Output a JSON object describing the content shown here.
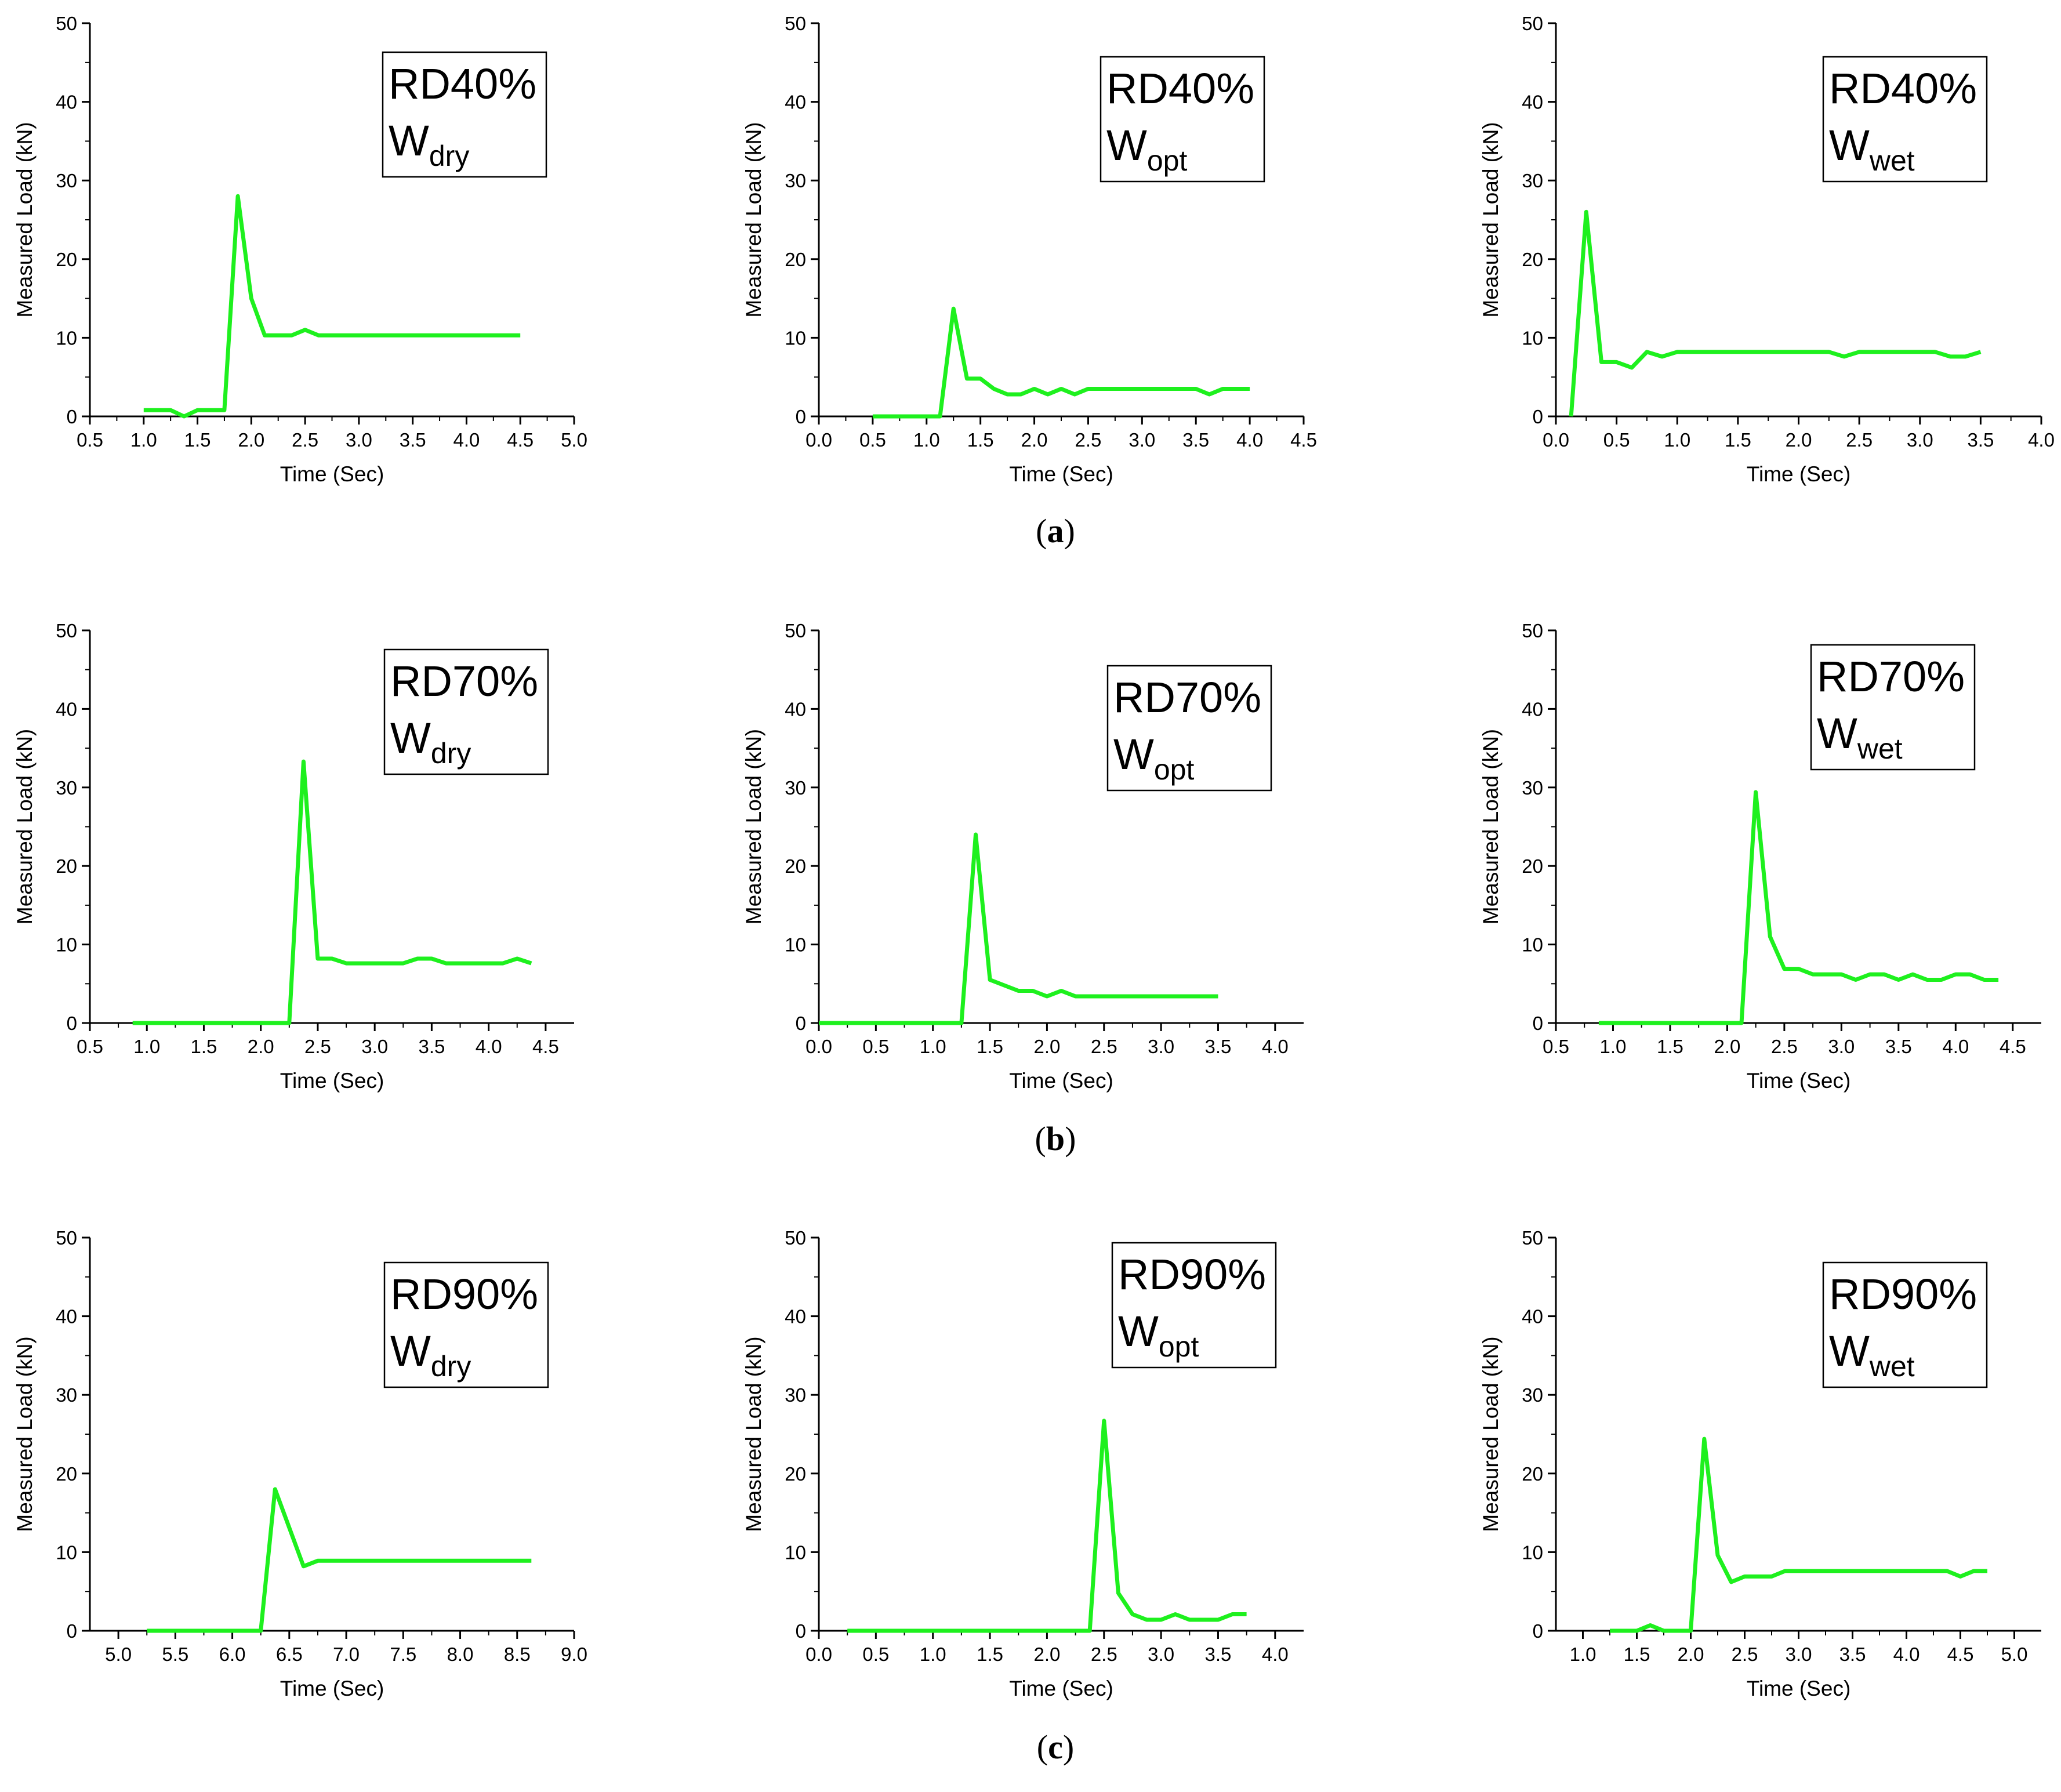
{
  "figure": {
    "line_color": "#1ef01e",
    "axis_color": "#000000",
    "row_labels": [
      "a",
      "b",
      "c"
    ]
  },
  "chart_data": [
    {
      "type": "line",
      "row": "a",
      "title": "RD40%",
      "subscript": "dry",
      "xlabel": "Time (Sec)",
      "ylabel": "Measured Load (kN)",
      "xlim": [
        0.5,
        5.0
      ],
      "xticks": [
        "0.5",
        "1.0",
        "1.5",
        "2.0",
        "2.5",
        "3.0",
        "3.5",
        "4.0",
        "4.5",
        "5.0"
      ],
      "ylim": [
        0,
        50
      ],
      "yticks": [
        "0",
        "10",
        "20",
        "30",
        "40",
        "50"
      ],
      "x": [
        1.0,
        1.25,
        1.375,
        1.5,
        1.75,
        1.875,
        2.0,
        2.125,
        2.375,
        2.5,
        2.625,
        4.5
      ],
      "y": [
        0.8,
        0.8,
        0.0,
        0.8,
        0.8,
        28.0,
        15.0,
        10.3,
        10.3,
        11.0,
        10.3,
        10.3
      ]
    },
    {
      "type": "line",
      "row": "a",
      "title": "RD40%",
      "subscript": "opt",
      "xlabel": "Time (Sec)",
      "ylabel": "Measured Load (kN)",
      "xlim": [
        0.0,
        4.5
      ],
      "xticks": [
        "0.0",
        "0.5",
        "1.0",
        "1.5",
        "2.0",
        "2.5",
        "3.0",
        "3.5",
        "4.0",
        "4.5"
      ],
      "ylim": [
        0,
        50
      ],
      "yticks": [
        "0",
        "10",
        "20",
        "30",
        "40",
        "50"
      ],
      "x": [
        0.5,
        1.125,
        1.25,
        1.375,
        1.5,
        1.625,
        1.75,
        1.875,
        2.0,
        2.125,
        2.25,
        2.375,
        2.5,
        3.5,
        3.625,
        3.75,
        4.0
      ],
      "y": [
        0.0,
        0.0,
        13.7,
        4.8,
        4.8,
        3.5,
        2.8,
        2.8,
        3.5,
        2.8,
        3.5,
        2.8,
        3.5,
        3.5,
        2.8,
        3.5,
        3.5
      ]
    },
    {
      "type": "line",
      "row": "a",
      "title": "RD40%",
      "subscript": "wet",
      "xlabel": "Time (Sec)",
      "ylabel": "Measured Load (kN)",
      "xlim": [
        0.0,
        4.0
      ],
      "xticks": [
        "0.0",
        "0.5",
        "1.0",
        "1.5",
        "2.0",
        "2.5",
        "3.0",
        "3.5",
        "4.0"
      ],
      "ylim": [
        0,
        50
      ],
      "yticks": [
        "0",
        "10",
        "20",
        "30",
        "40",
        "50"
      ],
      "x": [
        0.125,
        0.25,
        0.375,
        0.5,
        0.625,
        0.75,
        0.875,
        1.0,
        2.25,
        2.375,
        2.5,
        3.125,
        3.25,
        3.375,
        3.5
      ],
      "y": [
        0.0,
        26.0,
        6.9,
        6.9,
        6.2,
        8.2,
        7.6,
        8.2,
        8.2,
        7.6,
        8.2,
        8.2,
        7.6,
        7.6,
        8.2
      ]
    },
    {
      "type": "line",
      "row": "b",
      "title": "RD70%",
      "subscript": "dry",
      "xlabel": "Time (Sec)",
      "ylabel": "Measured Load (kN)",
      "xlim": [
        0.5,
        4.75
      ],
      "xticks": [
        "0.5",
        "1.0",
        "1.5",
        "2.0",
        "2.5",
        "3.0",
        "3.5",
        "4.0",
        "4.5"
      ],
      "ylim": [
        0,
        50
      ],
      "yticks": [
        "0",
        "10",
        "20",
        "30",
        "40",
        "50"
      ],
      "x": [
        0.875,
        2.25,
        2.375,
        2.5,
        2.625,
        2.75,
        3.25,
        3.375,
        3.5,
        3.625,
        4.125,
        4.25,
        4.375
      ],
      "y": [
        0.0,
        0.0,
        33.3,
        8.2,
        8.2,
        7.6,
        7.6,
        8.2,
        8.2,
        7.6,
        7.6,
        8.2,
        7.6
      ]
    },
    {
      "type": "line",
      "row": "b",
      "title": "RD70%",
      "subscript": "opt",
      "xlabel": "Time (Sec)",
      "ylabel": "Measured Load (kN)",
      "xlim": [
        0.0,
        4.25
      ],
      "xticks": [
        "0.0",
        "0.5",
        "1.0",
        "1.5",
        "2.0",
        "2.5",
        "3.0",
        "3.5",
        "4.0"
      ],
      "ylim": [
        0,
        50
      ],
      "yticks": [
        "0",
        "10",
        "20",
        "30",
        "40",
        "50"
      ],
      "x": [
        0.0,
        1.25,
        1.375,
        1.5,
        1.625,
        1.75,
        1.875,
        2.0,
        2.125,
        2.25,
        3.5
      ],
      "y": [
        0.0,
        0.0,
        24.0,
        5.5,
        4.8,
        4.1,
        4.1,
        3.4,
        4.1,
        3.4,
        3.4
      ]
    },
    {
      "type": "line",
      "row": "b",
      "title": "RD70%",
      "subscript": "wet",
      "xlabel": "Time (Sec)",
      "ylabel": "Measured Load (kN)",
      "xlim": [
        0.5,
        4.75
      ],
      "xticks": [
        "0.5",
        "1.0",
        "1.5",
        "2.0",
        "2.5",
        "3.0",
        "3.5",
        "4.0",
        "4.5"
      ],
      "ylim": [
        0,
        50
      ],
      "yticks": [
        "0",
        "10",
        "20",
        "30",
        "40",
        "50"
      ],
      "x": [
        0.875,
        2.125,
        2.25,
        2.375,
        2.5,
        2.625,
        2.75,
        3.0,
        3.125,
        3.25,
        3.375,
        3.5,
        3.625,
        3.75,
        3.875,
        4.0,
        4.125,
        4.25,
        4.375
      ],
      "y": [
        0.0,
        0.0,
        29.4,
        11.0,
        6.9,
        6.9,
        6.2,
        6.2,
        5.5,
        6.2,
        6.2,
        5.5,
        6.2,
        5.5,
        5.5,
        6.2,
        6.2,
        5.5,
        5.5
      ]
    },
    {
      "type": "line",
      "row": "c",
      "title": "RD90%",
      "subscript": "dry",
      "xlabel": "Time (Sec)",
      "ylabel": "Measured Load (kN)",
      "xlim": [
        4.75,
        9.0
      ],
      "xticks": [
        "5.0",
        "5.5",
        "6.0",
        "6.5",
        "7.0",
        "7.5",
        "8.0",
        "8.5",
        "9.0"
      ],
      "ylim": [
        0,
        50
      ],
      "yticks": [
        "0",
        "10",
        "20",
        "30",
        "40",
        "50"
      ],
      "x": [
        5.25,
        6.25,
        6.375,
        6.625,
        6.75,
        8.625
      ],
      "y": [
        0.0,
        0.0,
        18.0,
        8.2,
        8.9,
        8.9
      ]
    },
    {
      "type": "line",
      "row": "c",
      "title": "RD90%",
      "subscript": "opt",
      "xlabel": "Time (Sec)",
      "ylabel": "Measured Load (kN)",
      "xlim": [
        0.0,
        4.25
      ],
      "xticks": [
        "0.0",
        "0.5",
        "1.0",
        "1.5",
        "2.0",
        "2.5",
        "3.0",
        "3.5",
        "4.0"
      ],
      "ylim": [
        0,
        50
      ],
      "yticks": [
        "0",
        "10",
        "20",
        "30",
        "40",
        "50"
      ],
      "x": [
        0.25,
        2.375,
        2.5,
        2.625,
        2.75,
        2.875,
        3.0,
        3.125,
        3.25,
        3.375,
        3.5,
        3.625,
        3.75
      ],
      "y": [
        0.0,
        0.0,
        26.7,
        4.8,
        2.1,
        1.4,
        1.4,
        2.1,
        1.4,
        1.4,
        1.4,
        2.1,
        2.1
      ]
    },
    {
      "type": "line",
      "row": "c",
      "title": "RD90%",
      "subscript": "wet",
      "xlabel": "Time (Sec)",
      "ylabel": "Measured Load (kN)",
      "xlim": [
        0.75,
        5.25
      ],
      "xticks": [
        "1.0",
        "1.5",
        "2.0",
        "2.5",
        "3.0",
        "3.5",
        "4.0",
        "4.5",
        "5.0"
      ],
      "ylim": [
        0,
        50
      ],
      "yticks": [
        "0",
        "10",
        "20",
        "30",
        "40",
        "50"
      ],
      "x": [
        1.25,
        1.5,
        1.625,
        1.75,
        2.0,
        2.125,
        2.25,
        2.375,
        2.5,
        2.75,
        2.875,
        4.375,
        4.5,
        4.625,
        4.75
      ],
      "y": [
        0.0,
        0.0,
        0.7,
        0.0,
        0.0,
        24.4,
        9.6,
        6.2,
        6.9,
        6.9,
        7.6,
        7.6,
        6.9,
        7.6,
        7.6
      ]
    }
  ]
}
